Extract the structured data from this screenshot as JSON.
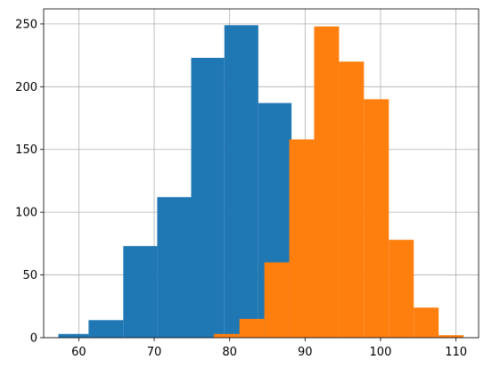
{
  "chart_data": {
    "type": "bar",
    "title": "",
    "xlabel": "",
    "ylabel": "",
    "xlim": [
      55.35,
      113.0
    ],
    "ylim": [
      0,
      262
    ],
    "grid": true,
    "xticks": [
      60,
      70,
      80,
      90,
      100,
      110
    ],
    "yticks": [
      0,
      50,
      100,
      150,
      200,
      250
    ],
    "series": [
      {
        "color": "#1f77b4",
        "bins": [
          {
            "x0": 57.3,
            "x1": 61.3,
            "value": 3
          },
          {
            "x0": 61.3,
            "x1": 65.9,
            "value": 14
          },
          {
            "x0": 65.9,
            "x1": 70.4,
            "value": 73
          },
          {
            "x0": 70.4,
            "x1": 74.9,
            "value": 112
          },
          {
            "x0": 74.9,
            "x1": 79.3,
            "value": 223
          },
          {
            "x0": 79.3,
            "x1": 83.8,
            "value": 249
          },
          {
            "x0": 83.8,
            "x1": 88.2,
            "value": 187
          }
        ]
      },
      {
        "color": "#ff7f0e",
        "bins": [
          {
            "x0": 77.9,
            "x1": 81.3,
            "value": 3
          },
          {
            "x0": 81.3,
            "x1": 84.6,
            "value": 15
          },
          {
            "x0": 84.6,
            "x1": 87.9,
            "value": 60
          },
          {
            "x0": 87.9,
            "x1": 91.2,
            "value": 158
          },
          {
            "x0": 91.2,
            "x1": 94.5,
            "value": 248
          },
          {
            "x0": 94.5,
            "x1": 97.8,
            "value": 220
          },
          {
            "x0": 97.8,
            "x1": 101.1,
            "value": 190
          },
          {
            "x0": 101.1,
            "x1": 104.4,
            "value": 78
          },
          {
            "x0": 104.4,
            "x1": 107.7,
            "value": 24
          },
          {
            "x0": 107.7,
            "x1": 111.0,
            "value": 2
          }
        ]
      }
    ]
  }
}
